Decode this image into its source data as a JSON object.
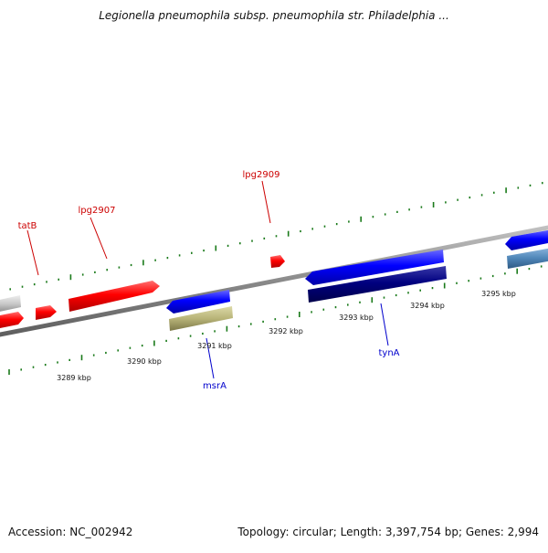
{
  "title": "Legionella pneumophila subsp. pneumophila str. Philadelphia ...",
  "footer": {
    "accession": "Accession: NC_002942",
    "summary": "Topology: circular; Length: 3,397,754 bp; Genes: 2,994"
  },
  "colors": {
    "backbone": "#8a8a8a",
    "tick": "#1a7a1a",
    "forward_gene": "#ff0000",
    "reverse_gene": "#0000ff",
    "dark_gene": "#000080",
    "olive_gene": "#b8b478",
    "steel_gene": "#4f86b8",
    "grey_gene": "#c8c8c8",
    "label_red": "#cc0000",
    "label_blue": "#0000cc"
  },
  "scale_labels": [
    "3289 kbp",
    "3290 kbp",
    "3291 kbp",
    "3292 kbp",
    "3293 kbp",
    "3294 kbp",
    "3295 kbp"
  ],
  "genes": [
    {
      "label": "tatB",
      "strand": "forward",
      "color": "forward_gene"
    },
    {
      "label": "lpg2907",
      "strand": "forward",
      "color": "forward_gene"
    },
    {
      "label": "lpg2909",
      "strand": "forward",
      "color": "forward_gene"
    },
    {
      "label": "msrA",
      "strand": "reverse",
      "color": "reverse_gene"
    },
    {
      "label": "tynA",
      "strand": "reverse",
      "color": "reverse_gene"
    }
  ]
}
